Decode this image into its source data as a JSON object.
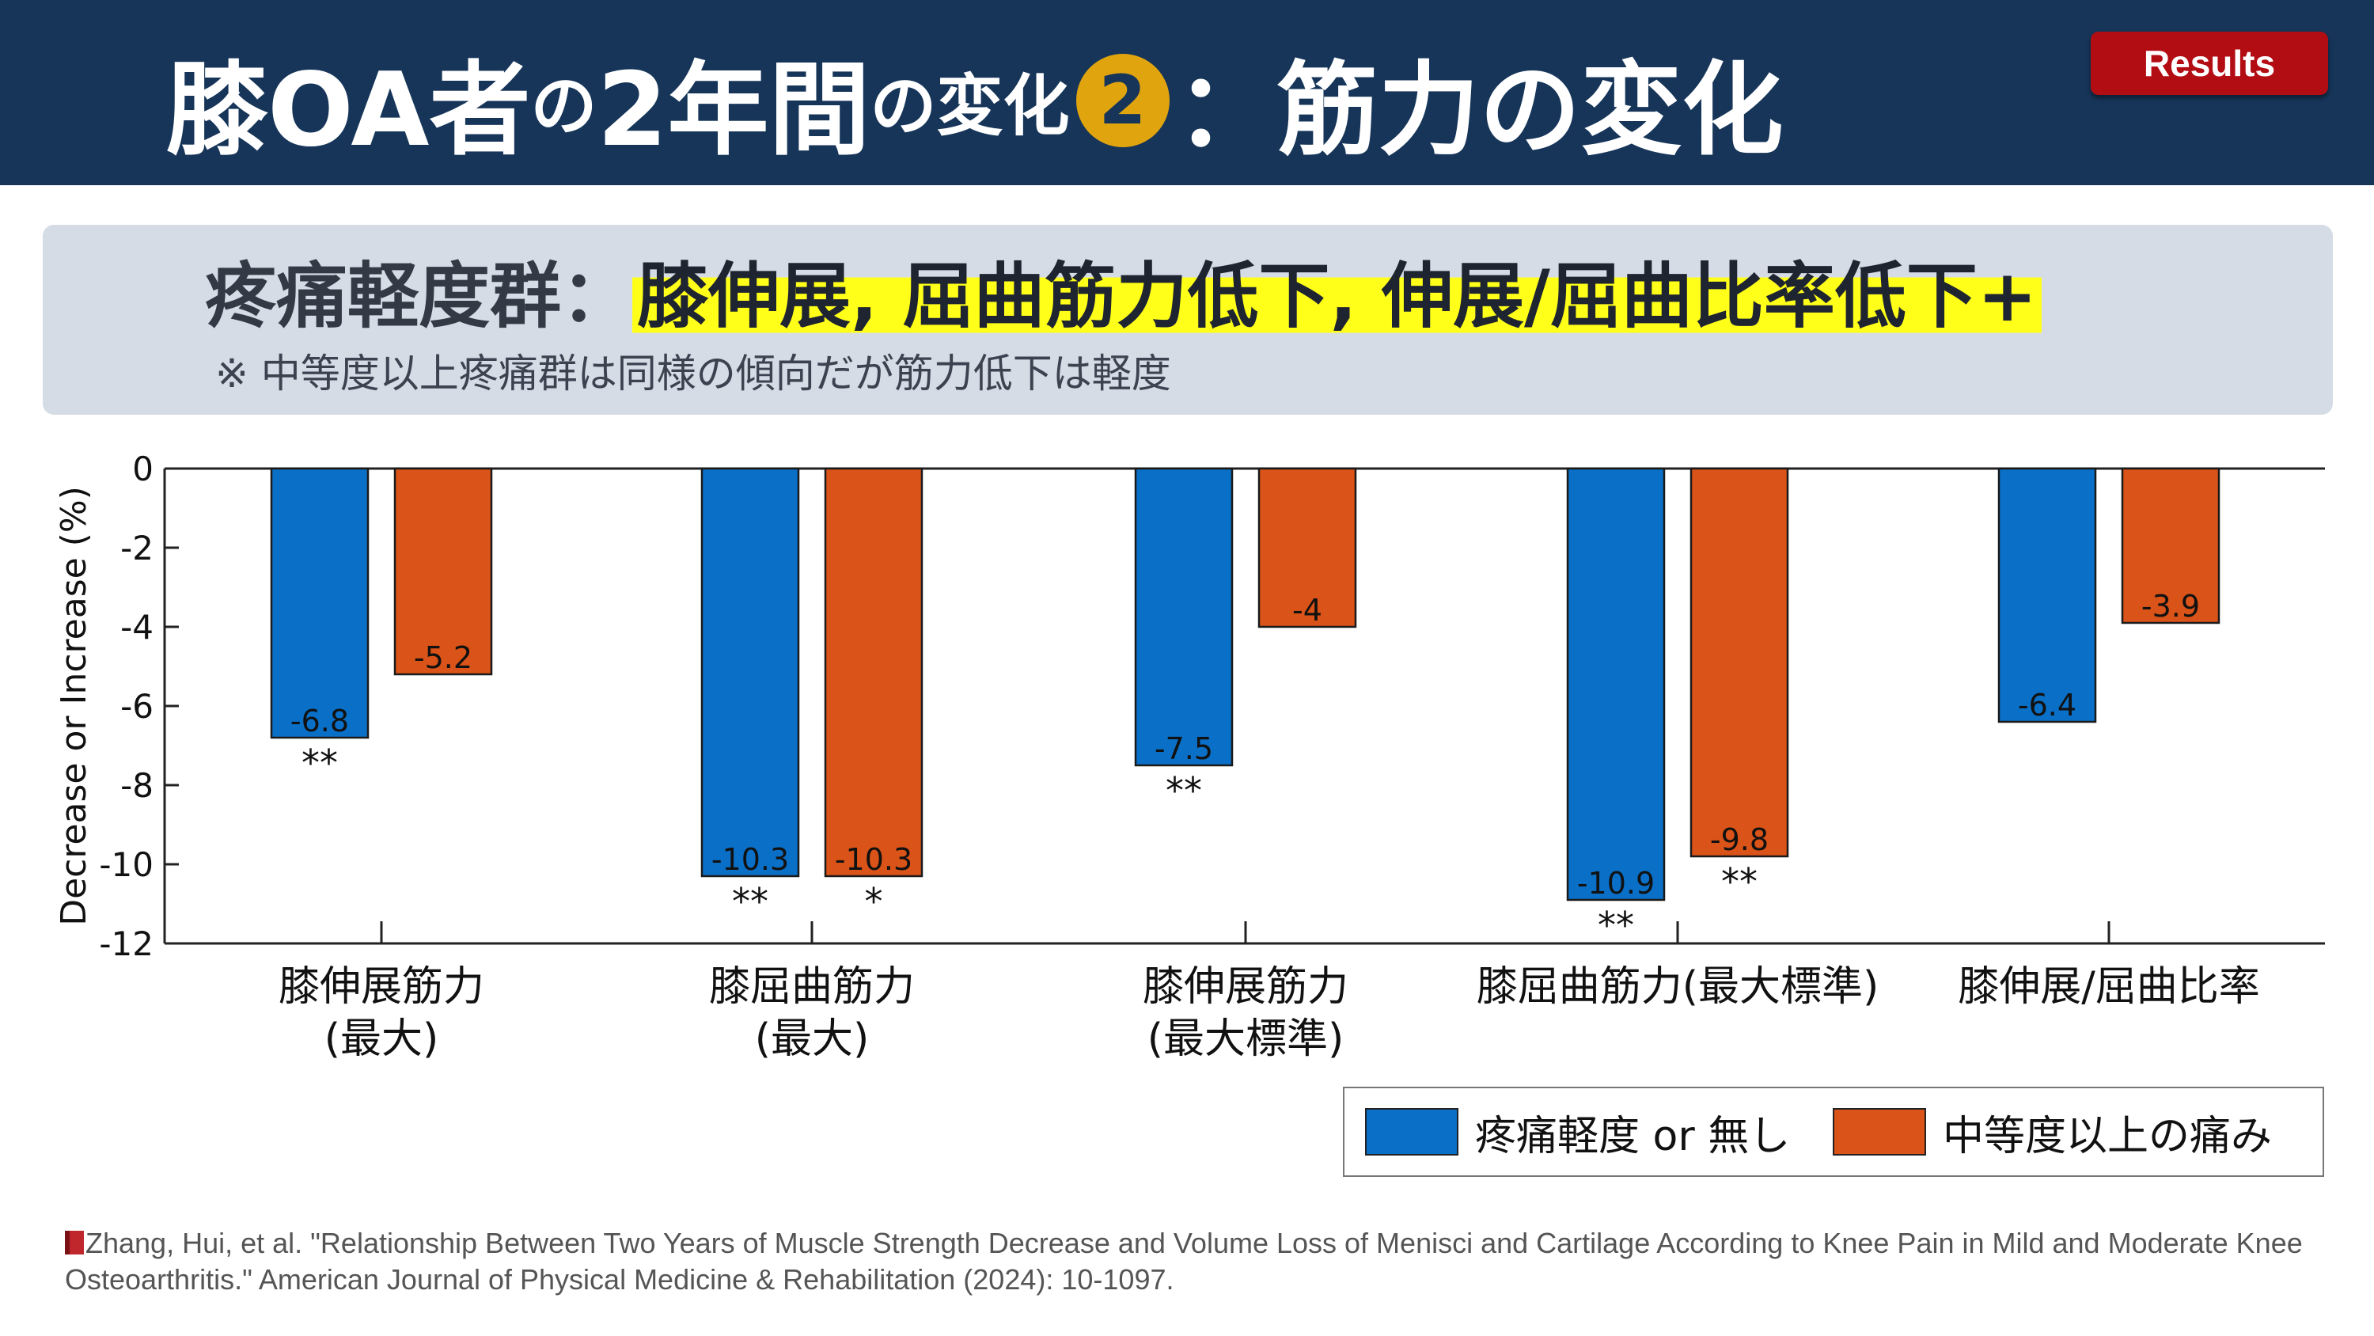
{
  "header": {
    "title_part1": "膝OA者",
    "title_part2": "の",
    "title_part3": "2年間",
    "title_part4": "の変化",
    "title_circle": "2",
    "title_part5": "：筋力の変化",
    "badge": "Results",
    "colors": {
      "background": "#163559",
      "badge": "#b30d14",
      "circle": "#e0a40f"
    }
  },
  "summary": {
    "lead": "疼痛軽度群：",
    "highlight": "膝伸展, 屈曲筋力低下, 伸展/屈曲比率低下+",
    "note": "※ 中等度以上疼痛群は同様の傾向だが筋力低下は軽度",
    "highlight_color": "#ffff1a"
  },
  "chart_data": {
    "type": "bar",
    "ylabel": "Decrease or Increase (%)",
    "ylim": [
      -12,
      0
    ],
    "yticks": [
      0,
      -2,
      -4,
      -6,
      -8,
      -10,
      -12
    ],
    "grid": false,
    "categories": [
      [
        "膝伸展筋力",
        "(最大)"
      ],
      [
        "膝屈曲筋力",
        "(最大)"
      ],
      [
        "膝伸展筋力",
        "(最大標準)"
      ],
      [
        "膝屈曲筋力(最大標準)"
      ],
      [
        "膝伸展/屈曲比率"
      ]
    ],
    "series": [
      {
        "name": "疼痛軽度 or 無し",
        "color": "#0a6fc6",
        "values": [
          -6.8,
          -10.3,
          -7.5,
          -10.9,
          -6.4
        ],
        "labels": [
          "-6.8",
          "-10.3",
          "-7.5",
          "-10.9",
          "-6.4"
        ],
        "significance": [
          "**",
          "**",
          "**",
          "**",
          ""
        ]
      },
      {
        "name": "中等度以上の痛み",
        "color": "#da5318",
        "values": [
          -5.2,
          -10.3,
          -4.0,
          -9.8,
          -3.9
        ],
        "labels": [
          "-5.2",
          "-10.3",
          "-4",
          "-9.8",
          "-3.9"
        ],
        "significance": [
          "",
          "*",
          "",
          "**",
          ""
        ]
      }
    ],
    "legend_position": "bottom-right"
  },
  "reference": {
    "text": "Zhang, Hui, et al. \"Relationship Between Two Years of Muscle Strength Decrease and Volume Loss of Menisci and Cartilage According to Knee Pain in Mild and Moderate Knee Osteoarthritis.\" American Journal of Physical Medicine & Rehabilitation (2024): 10-1097.",
    "icon": "book-icon"
  }
}
